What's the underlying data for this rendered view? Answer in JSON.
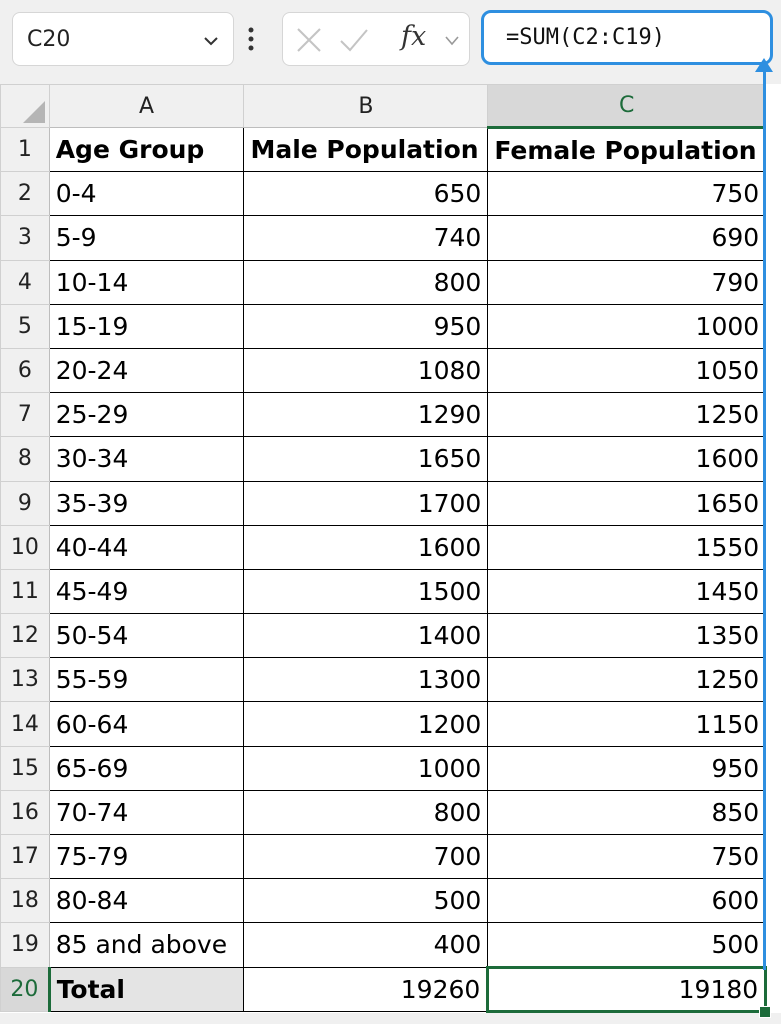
{
  "formula_bar": {
    "name_box": "C20",
    "fx_label": "fx",
    "formula": "=SUM(C2:C19)"
  },
  "columns": [
    "A",
    "B",
    "C"
  ],
  "header_row": {
    "row_number": "1",
    "cells": [
      "Age Group",
      "Male Population",
      "Female Population"
    ]
  },
  "rows": [
    {
      "n": "2",
      "age": "0-4",
      "male": "650",
      "female": "750"
    },
    {
      "n": "3",
      "age": "5-9",
      "male": "740",
      "female": "690"
    },
    {
      "n": "4",
      "age": "10-14",
      "male": "800",
      "female": "790"
    },
    {
      "n": "5",
      "age": "15-19",
      "male": "950",
      "female": "1000"
    },
    {
      "n": "6",
      "age": "20-24",
      "male": "1080",
      "female": "1050"
    },
    {
      "n": "7",
      "age": "25-29",
      "male": "1290",
      "female": "1250"
    },
    {
      "n": "8",
      "age": "30-34",
      "male": "1650",
      "female": "1600"
    },
    {
      "n": "9",
      "age": "35-39",
      "male": "1700",
      "female": "1650"
    },
    {
      "n": "10",
      "age": "40-44",
      "male": "1600",
      "female": "1550"
    },
    {
      "n": "11",
      "age": "45-49",
      "male": "1500",
      "female": "1450"
    },
    {
      "n": "12",
      "age": "50-54",
      "male": "1400",
      "female": "1350"
    },
    {
      "n": "13",
      "age": "55-59",
      "male": "1300",
      "female": "1250"
    },
    {
      "n": "14",
      "age": "60-64",
      "male": "1200",
      "female": "1150"
    },
    {
      "n": "15",
      "age": "65-69",
      "male": "1000",
      "female": "950"
    },
    {
      "n": "16",
      "age": "70-74",
      "male": "800",
      "female": "850"
    },
    {
      "n": "17",
      "age": "75-79",
      "male": "700",
      "female": "750"
    },
    {
      "n": "18",
      "age": "80-84",
      "male": "500",
      "female": "600"
    },
    {
      "n": "19",
      "age": "85 and above",
      "male": "400",
      "female": "500"
    }
  ],
  "total_row": {
    "n": "20",
    "label": "Total",
    "male": "19260",
    "female": "19180"
  },
  "colors": {
    "selection_green": "#1c6b3a",
    "formula_blue": "#2e8fe0",
    "header_gray": "#f0f0f0"
  }
}
